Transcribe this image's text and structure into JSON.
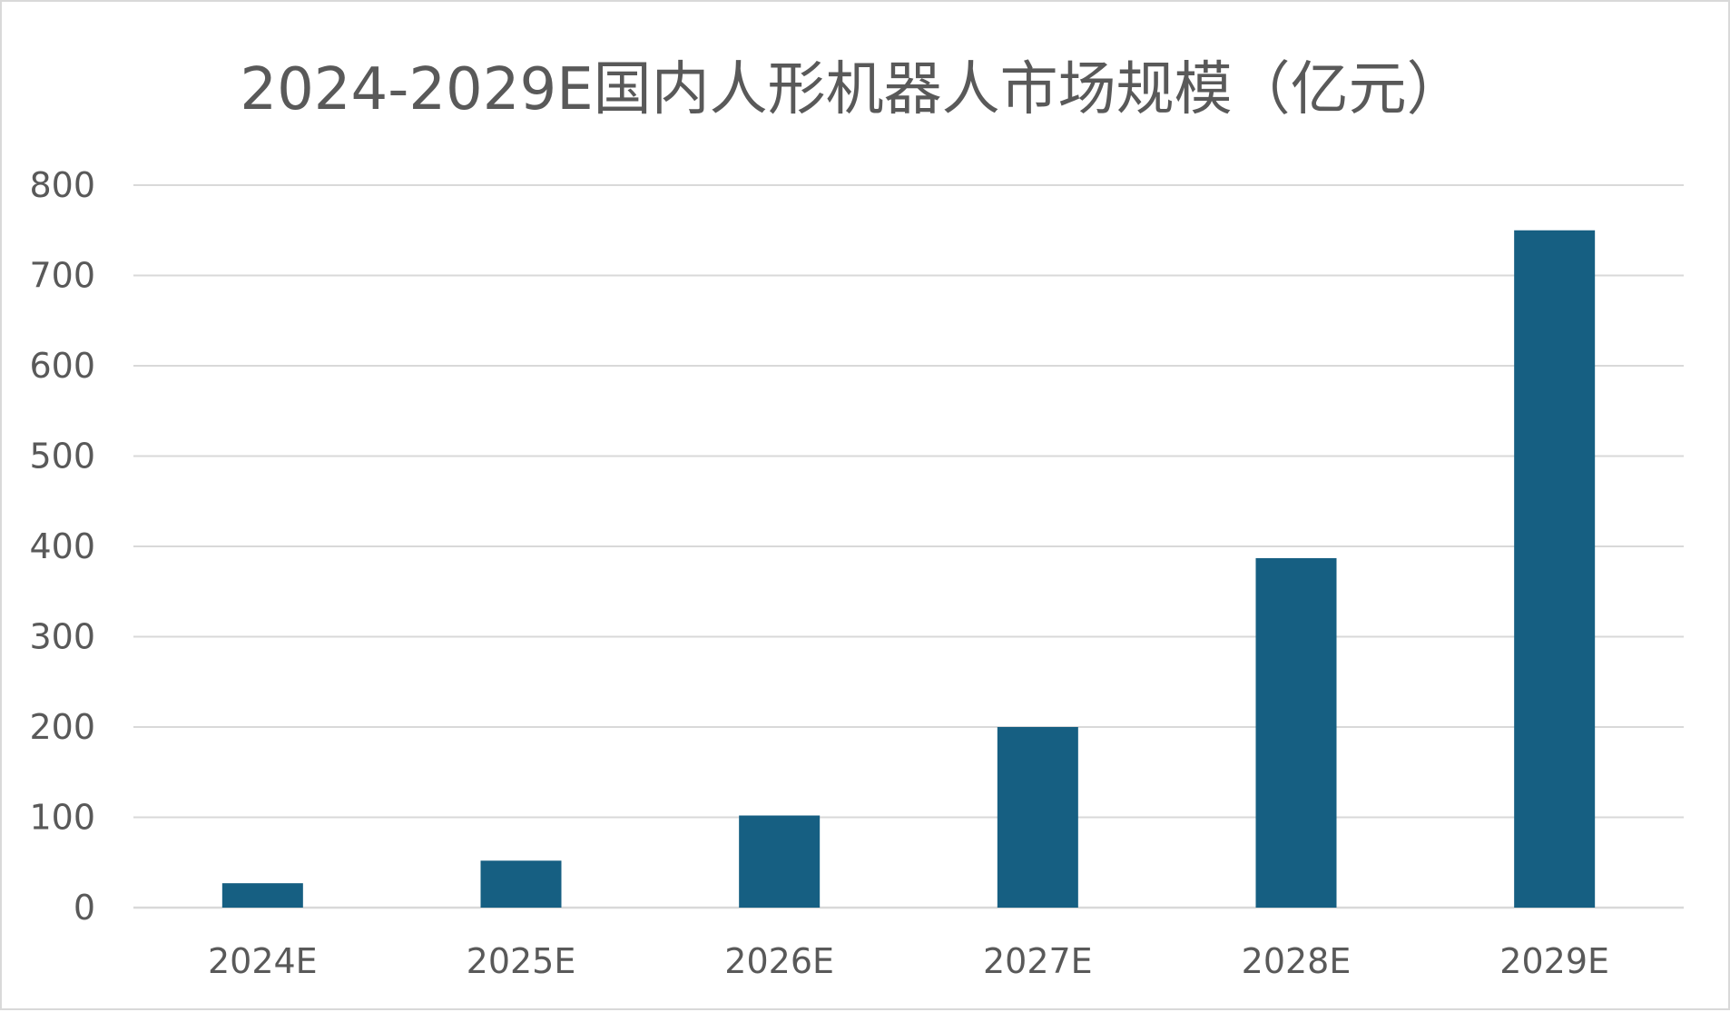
{
  "chart_data": {
    "type": "bar",
    "title": "2024-2029E国内人形机器人市场规模（亿元）",
    "xlabel": "",
    "ylabel": "",
    "categories": [
      "2024E",
      "2025E",
      "2026E",
      "2027E",
      "2028E",
      "2029E"
    ],
    "series": [
      {
        "values": [
          27,
          52,
          102,
          200,
          387,
          750
        ],
        "color": "#165f82"
      }
    ],
    "ylim": [
      0,
      800
    ],
    "yticks": [
      0,
      100,
      200,
      300,
      400,
      500,
      600,
      700,
      800
    ],
    "grid": true,
    "legend": "none"
  },
  "colors": {
    "bar": "#165f82",
    "grid": "#d9d9d9",
    "text": "#595959",
    "frame": "#d9d9d9"
  }
}
